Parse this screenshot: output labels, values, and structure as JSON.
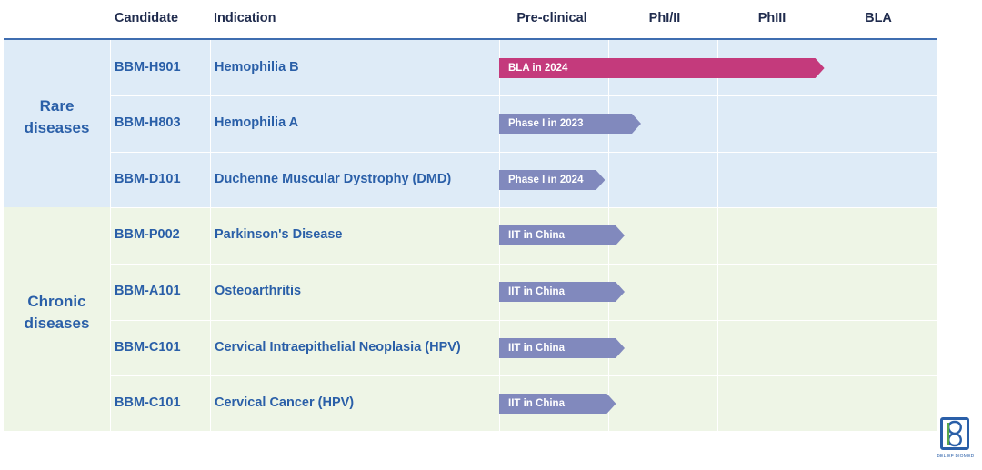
{
  "header": {
    "candidate": "Candidate",
    "indication": "Indication",
    "phases": [
      "Pre-clinical",
      "PhI/II",
      "PhIII",
      "BLA"
    ]
  },
  "groups": [
    {
      "label_lines": [
        "Rare",
        "diseases"
      ],
      "color": "#deebf7"
    },
    {
      "label_lines": [
        "Chronic",
        "diseases"
      ],
      "color": "#eef5e6"
    }
  ],
  "rows": [
    {
      "candidate": "BBM-H901",
      "indication": "Hemophilia B"
    },
    {
      "candidate": "BBM-H803",
      "indication": "Hemophilia A"
    },
    {
      "candidate": "BBM-D101",
      "indication": "Duchenne Muscular Dystrophy (DMD)"
    },
    {
      "candidate": "BBM-P002",
      "indication": "Parkinson's Disease"
    },
    {
      "candidate": "BBM-A101",
      "indication": "Osteoarthritis"
    },
    {
      "candidate": "BBM-C101",
      "indication": "Cervical Intraepithelial Neoplasia (HPV)"
    },
    {
      "candidate": "BBM-C101",
      "indication": "Cervical Cancer (HPV)"
    }
  ],
  "chart_data": {
    "type": "bar",
    "orientation": "horizontal",
    "categories": [
      "BBM-H901 Hemophilia B",
      "BBM-H803 Hemophilia A",
      "BBM-D101 Duchenne Muscular Dystrophy (DMD)",
      "BBM-P002 Parkinson's Disease",
      "BBM-A101 Osteoarthritis",
      "BBM-C101 Cervical Intraepithelial Neoplasia (HPV)",
      "BBM-C101 Cervical Cancer (HPV)"
    ],
    "x_stages": [
      "Pre-clinical",
      "PhI/II",
      "PhIII",
      "BLA"
    ],
    "values": [
      2.98,
      1.3,
      0.97,
      1.15,
      1.15,
      1.15,
      1.07
    ],
    "bar_labels": [
      "BLA in 2024",
      "Phase I in 2023",
      "Phase I in 2024",
      "IIT in China",
      "IIT in China",
      "IIT in China",
      "IIT in China"
    ],
    "bar_colors": [
      "#c43a7c",
      "#8189bd",
      "#8189bd",
      "#8189bd",
      "#8189bd",
      "#8189bd",
      "#8189bd"
    ],
    "xlim": [
      0,
      4
    ],
    "grid": true
  },
  "logo": {
    "text": "BELIEF BIOMED"
  }
}
